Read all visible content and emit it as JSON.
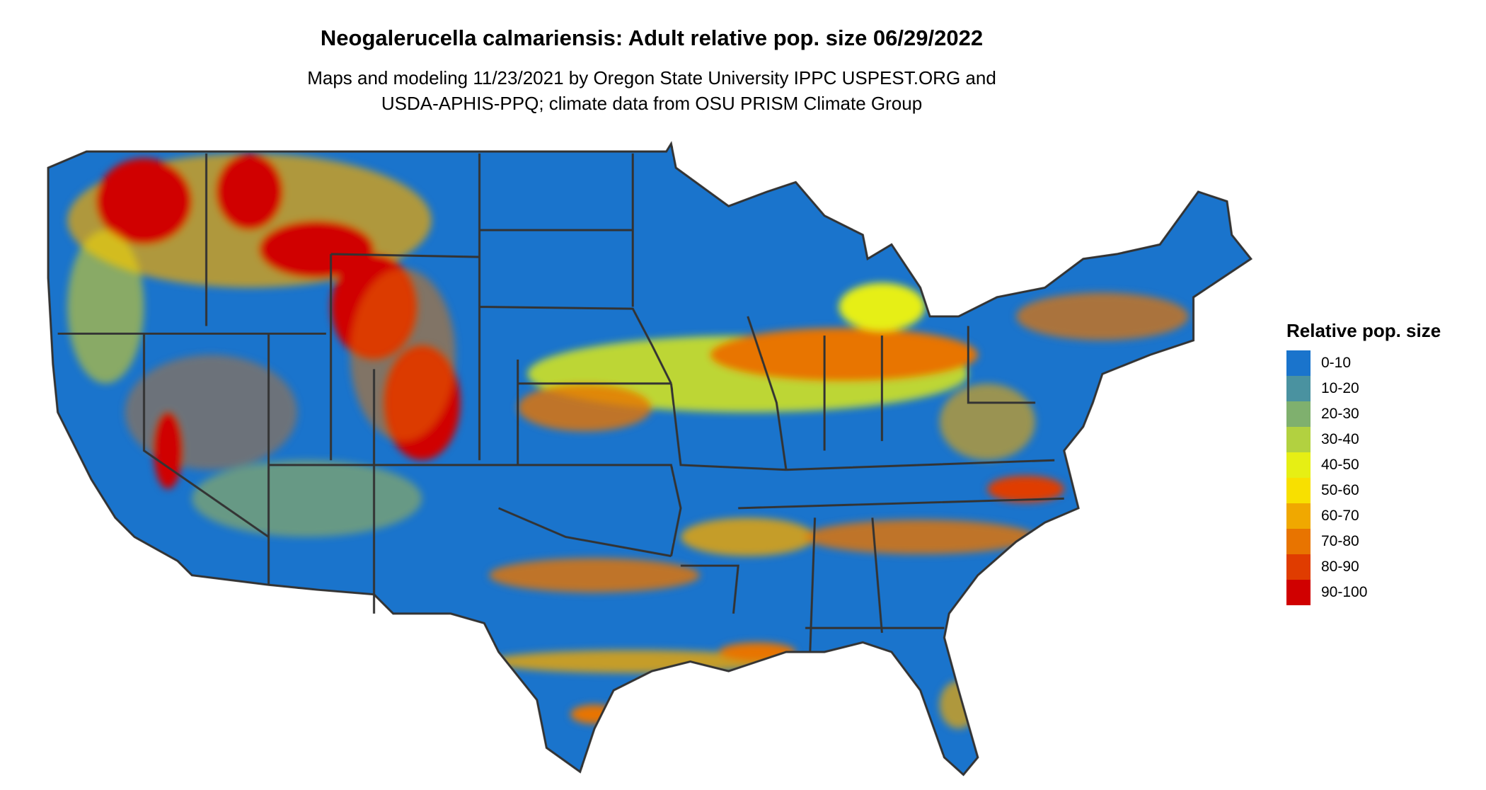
{
  "title": "Neogalerucella calmariensis: Adult relative pop. size 06/29/2022",
  "subtitle_line1": "Maps and modeling 11/23/2021 by Oregon State University IPPC USPEST.ORG and",
  "subtitle_line2": "USDA-APHIS-PPQ; climate data from OSU PRISM Climate Group",
  "legend": {
    "title": "Relative pop. size",
    "items": [
      {
        "label": "0-10",
        "color": "#1a74cc"
      },
      {
        "label": "10-20",
        "color": "#4a92a0"
      },
      {
        "label": "20-30",
        "color": "#7fb06e"
      },
      {
        "label": "30-40",
        "color": "#b2d140"
      },
      {
        "label": "40-50",
        "color": "#e6ef14"
      },
      {
        "label": "50-60",
        "color": "#f8e000"
      },
      {
        "label": "60-70",
        "color": "#f0a800"
      },
      {
        "label": "70-80",
        "color": "#e87400"
      },
      {
        "label": "80-90",
        "color": "#e03c00"
      },
      {
        "label": "90-100",
        "color": "#d00000"
      }
    ]
  },
  "map": {
    "region": "Contiguous United States",
    "border_color": "#333333"
  }
}
